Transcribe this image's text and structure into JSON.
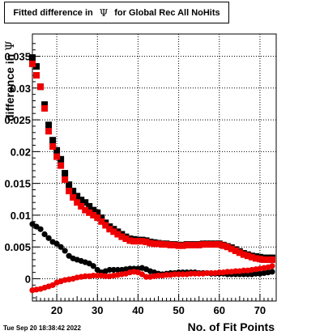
{
  "chart_data": {
    "type": "scatter",
    "title_prefix": "Fitted difference in",
    "title_symbol": "Ψ",
    "title_suffix": "for Global Rec All NoHits",
    "xlabel": "No. of Fit Points",
    "ylabel_prefix": "difference in",
    "ylabel_symbol": "Ψ",
    "xlim": [
      14,
      74
    ],
    "ylim": [
      -0.0035,
      0.0385
    ],
    "xticks": [
      20,
      30,
      40,
      50,
      60,
      70
    ],
    "xtick_labels": [
      "20",
      "30",
      "40",
      "50",
      "60",
      "70"
    ],
    "yticks": [
      0,
      0.005,
      0.01,
      0.015,
      0.02,
      0.025,
      0.03,
      0.035
    ],
    "ytick_labels": [
      "0",
      "0.005",
      "0.01",
      "0.015",
      "0.02",
      "0.025",
      "0.03",
      "0.035"
    ],
    "grid": true,
    "series": [
      {
        "color": "#000000",
        "marker": "square",
        "x": [
          14,
          15,
          16,
          17,
          18,
          19,
          20,
          21,
          22,
          23,
          24,
          25,
          26,
          27,
          28,
          29,
          30,
          31,
          32,
          33,
          34,
          35,
          36,
          37,
          38,
          39,
          40,
          41,
          42,
          43,
          44,
          45,
          46,
          47,
          48,
          49,
          50,
          51,
          52,
          53,
          54,
          55,
          56,
          57,
          58,
          59,
          60,
          61,
          62,
          63,
          64,
          65,
          66,
          67,
          68,
          69,
          70,
          71,
          72,
          73
        ],
        "y": [
          0.0348,
          0.0334,
          0.0302,
          0.0274,
          0.0242,
          0.0218,
          0.0202,
          0.0188,
          0.0166,
          0.0148,
          0.0138,
          0.013,
          0.0124,
          0.012,
          0.0114,
          0.0108,
          0.0104,
          0.0096,
          0.0088,
          0.0082,
          0.0078,
          0.0074,
          0.007,
          0.0066,
          0.0063,
          0.0062,
          0.0061,
          0.0061,
          0.006,
          0.0058,
          0.0057,
          0.0056,
          0.0055,
          0.0055,
          0.0054,
          0.0054,
          0.0053,
          0.0053,
          0.0054,
          0.0054,
          0.0054,
          0.0054,
          0.0055,
          0.0055,
          0.0055,
          0.0055,
          0.0055,
          0.0053,
          0.0051,
          0.0049,
          0.0046,
          0.0043,
          0.004,
          0.0038,
          0.0036,
          0.0035,
          0.0034,
          0.0033,
          0.0033,
          0.0033
        ]
      },
      {
        "color": "#ee0000",
        "marker": "square",
        "x": [
          14,
          15,
          16,
          17,
          18,
          19,
          20,
          21,
          22,
          23,
          24,
          25,
          26,
          27,
          28,
          29,
          30,
          31,
          32,
          33,
          34,
          35,
          36,
          37,
          38,
          39,
          40,
          41,
          42,
          43,
          44,
          45,
          46,
          47,
          48,
          49,
          50,
          51,
          52,
          53,
          54,
          55,
          56,
          57,
          58,
          59,
          60,
          61,
          62,
          63,
          64,
          65,
          66,
          67,
          68,
          69,
          70,
          71,
          72,
          73
        ],
        "y": [
          0.0338,
          0.032,
          0.0302,
          0.0268,
          0.0232,
          0.0208,
          0.0192,
          0.0178,
          0.0156,
          0.0138,
          0.0128,
          0.012,
          0.0114,
          0.0108,
          0.0104,
          0.01,
          0.0096,
          0.009,
          0.0084,
          0.0078,
          0.0074,
          0.007,
          0.0066,
          0.0063,
          0.006,
          0.0059,
          0.0059,
          0.0059,
          0.0058,
          0.0056,
          0.0055,
          0.0055,
          0.0054,
          0.0054,
          0.0053,
          0.0053,
          0.0052,
          0.0052,
          0.0053,
          0.0053,
          0.0053,
          0.0053,
          0.0054,
          0.0054,
          0.0054,
          0.0054,
          0.0054,
          0.0052,
          0.005,
          0.0047,
          0.0044,
          0.0041,
          0.0038,
          0.0036,
          0.0034,
          0.0032,
          0.0031,
          0.003,
          0.003,
          0.003
        ]
      },
      {
        "color": "#000000",
        "marker": "circle",
        "x": [
          14,
          15,
          16,
          17,
          18,
          19,
          20,
          21,
          22,
          23,
          24,
          25,
          26,
          27,
          28,
          29,
          30,
          31,
          32,
          33,
          34,
          35,
          36,
          37,
          38,
          39,
          40,
          41,
          42,
          43,
          44,
          45,
          46,
          47,
          48,
          49,
          50,
          51,
          52,
          53,
          54,
          55,
          56,
          57,
          58,
          59,
          60,
          61,
          62,
          63,
          64,
          65,
          66,
          67,
          68,
          69,
          70,
          71,
          72,
          73
        ],
        "y": [
          0.0086,
          0.0082,
          0.0078,
          0.007,
          0.0064,
          0.0058,
          0.0055,
          0.005,
          0.0044,
          0.0036,
          0.0032,
          0.003,
          0.0028,
          0.0026,
          0.0024,
          0.002,
          0.0014,
          0.001,
          0.0012,
          0.0014,
          0.0014,
          0.0014,
          0.0014,
          0.0015,
          0.0016,
          0.0016,
          0.0016,
          0.0017,
          0.0015,
          0.0012,
          0.001,
          0.0008,
          0.0007,
          0.0008,
          0.0009,
          0.0009,
          0.001,
          0.001,
          0.001,
          0.001,
          0.001,
          0.0009,
          0.0009,
          0.0009,
          0.0008,
          0.0008,
          0.0008,
          0.0008,
          0.0007,
          0.0007,
          0.0007,
          0.0007,
          0.0007,
          0.0007,
          0.0007,
          0.0008,
          0.0008,
          0.0009,
          0.001,
          0.0011
        ]
      },
      {
        "color": "#ee0000",
        "marker": "circle",
        "x": [
          14,
          15,
          16,
          17,
          18,
          19,
          20,
          21,
          22,
          23,
          24,
          25,
          26,
          27,
          28,
          29,
          30,
          31,
          32,
          33,
          34,
          35,
          36,
          37,
          38,
          39,
          40,
          41,
          42,
          43,
          44,
          45,
          46,
          47,
          48,
          49,
          50,
          51,
          52,
          53,
          54,
          55,
          56,
          57,
          58,
          59,
          60,
          61,
          62,
          63,
          64,
          65,
          66,
          67,
          68,
          69,
          70,
          71,
          72,
          73
        ],
        "y": [
          -0.0018,
          -0.0017,
          -0.0016,
          -0.0014,
          -0.0012,
          -0.001,
          -0.0006,
          -0.0004,
          -0.0002,
          -0.0001,
          0.0,
          0.0002,
          0.0003,
          0.0004,
          0.0004,
          0.0005,
          0.0005,
          0.0005,
          0.0004,
          0.0004,
          0.0005,
          0.0006,
          0.0007,
          0.0008,
          0.001,
          0.0011,
          0.001,
          0.0007,
          0.0003,
          0.0003,
          0.0004,
          0.0005,
          0.0005,
          0.0006,
          0.0006,
          0.0007,
          0.0007,
          0.0007,
          0.0007,
          0.0008,
          0.0008,
          0.0008,
          0.0008,
          0.0009,
          0.0009,
          0.0009,
          0.001,
          0.001,
          0.0011,
          0.0011,
          0.0012,
          0.0012,
          0.0013,
          0.0013,
          0.0014,
          0.0015,
          0.0016,
          0.0017,
          0.0018,
          0.002
        ]
      }
    ]
  },
  "footer": {
    "datestamp": "Tue Sep 20 18:38:42 2022"
  }
}
